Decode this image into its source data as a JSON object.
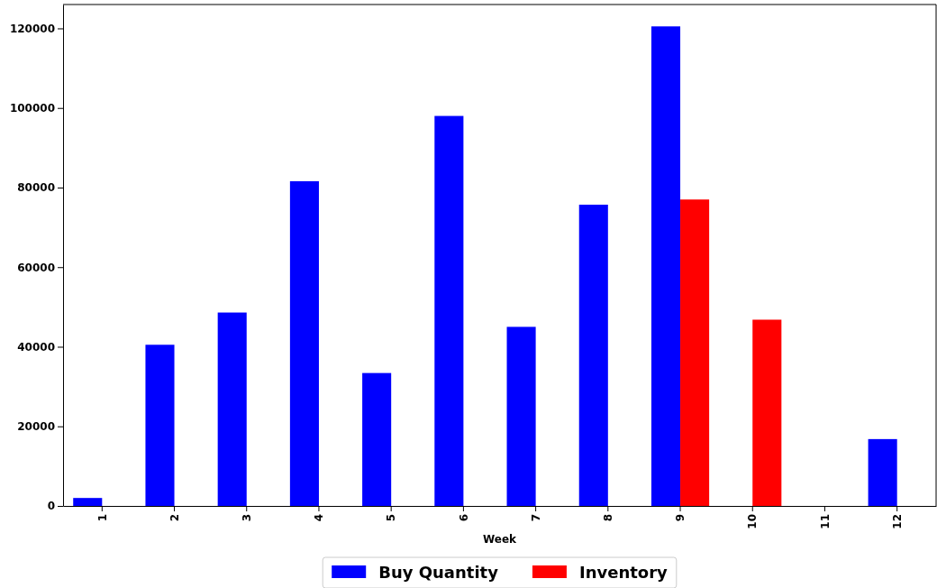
{
  "chart_data": {
    "type": "bar",
    "xlabel": "Week",
    "categories": [
      "1",
      "2",
      "3",
      "4",
      "5",
      "6",
      "7",
      "8",
      "9",
      "10",
      "11",
      "12"
    ],
    "series": [
      {
        "name": "Buy Quantity",
        "color": "#0000ff",
        "values": [
          2000,
          40500,
          48600,
          81600,
          33400,
          98000,
          45000,
          75700,
          120500,
          0,
          0,
          16800
        ]
      },
      {
        "name": "Inventory",
        "color": "#ff0000",
        "values": [
          0,
          0,
          0,
          0,
          0,
          0,
          0,
          0,
          77000,
          46800,
          0,
          0
        ]
      }
    ],
    "ylim": [
      0,
      126000
    ],
    "yticks": [
      0,
      20000,
      40000,
      60000,
      80000,
      100000,
      120000
    ],
    "grid": false,
    "legend": "bottom"
  }
}
